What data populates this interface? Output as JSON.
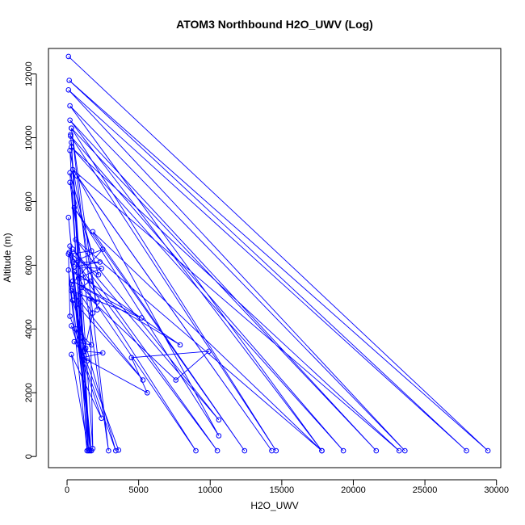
{
  "chart_data": {
    "type": "line",
    "title": "ATOM3 Northbound H2O_UWV (Log)",
    "xlabel": "H2O_UWV",
    "ylabel": "Altitude (m)",
    "xlim": [
      -1300,
      30300
    ],
    "ylim": [
      -350,
      12800
    ],
    "xticks": [
      0,
      5000,
      10000,
      15000,
      20000,
      25000,
      30000
    ],
    "yticks": [
      0,
      2000,
      4000,
      6000,
      8000,
      10000,
      12000
    ],
    "grid": false,
    "legend": "none",
    "marker": "open-circle",
    "series_color": "#0000ff",
    "series": [
      {
        "points": [
          {
            "x": 100,
            "y": 12550
          },
          {
            "x": 29400,
            "y": 180
          },
          {
            "x": 150,
            "y": 11800
          },
          {
            "x": 27900,
            "y": 180
          },
          {
            "x": 100,
            "y": 11500
          },
          {
            "x": 23600,
            "y": 180
          },
          {
            "x": 200,
            "y": 11000
          },
          {
            "x": 17800,
            "y": 180
          },
          {
            "x": 200,
            "y": 10550
          },
          {
            "x": 21600,
            "y": 180
          },
          {
            "x": 300,
            "y": 10300
          },
          {
            "x": 14600,
            "y": 180
          },
          {
            "x": 250,
            "y": 10050
          },
          {
            "x": 19300,
            "y": 180
          },
          {
            "x": 300,
            "y": 9700
          },
          {
            "x": 23200,
            "y": 180
          },
          {
            "x": 400,
            "y": 9000
          },
          {
            "x": 14300,
            "y": 180
          },
          {
            "x": 700,
            "y": 8800
          },
          {
            "x": 10600,
            "y": 650
          },
          {
            "x": 500,
            "y": 7800
          },
          {
            "x": 12400,
            "y": 180
          },
          {
            "x": 1800,
            "y": 7050
          },
          {
            "x": 17800,
            "y": 180
          },
          {
            "x": 600,
            "y": 6800
          },
          {
            "x": 10600,
            "y": 1150
          },
          {
            "x": 400,
            "y": 6500
          },
          {
            "x": 10500,
            "y": 180
          },
          {
            "x": 300,
            "y": 6300
          },
          {
            "x": 9000,
            "y": 180
          },
          {
            "x": 500,
            "y": 5800
          },
          {
            "x": 7900,
            "y": 3500
          },
          {
            "x": 400,
            "y": 5500
          },
          {
            "x": 5200,
            "y": 4350
          },
          {
            "x": 300,
            "y": 5200
          },
          {
            "x": 5300,
            "y": 2400
          },
          {
            "x": 400,
            "y": 4900
          },
          {
            "x": 3400,
            "y": 180
          },
          {
            "x": 300,
            "y": 4100
          },
          {
            "x": 2400,
            "y": 1200
          },
          {
            "x": 300,
            "y": 3200
          },
          {
            "x": 1500,
            "y": 180
          },
          {
            "x": 200,
            "y": 6600
          },
          {
            "x": 1600,
            "y": 180
          },
          {
            "x": 100,
            "y": 7500
          },
          {
            "x": 1700,
            "y": 180
          },
          {
            "x": 100,
            "y": 5850
          },
          {
            "x": 1400,
            "y": 180
          },
          {
            "x": 200,
            "y": 9600
          },
          {
            "x": 2100,
            "y": 4600
          },
          {
            "x": 300,
            "y": 10300
          },
          {
            "x": 2900,
            "y": 180
          },
          {
            "x": 200,
            "y": 8600
          },
          {
            "x": 2200,
            "y": 5700
          },
          {
            "x": 150,
            "y": 6400
          },
          {
            "x": 1300,
            "y": 3400
          },
          {
            "x": 600,
            "y": 4000
          },
          {
            "x": 1700,
            "y": 3500
          },
          {
            "x": 500,
            "y": 3600
          },
          {
            "x": 1400,
            "y": 3000
          },
          {
            "x": 300,
            "y": 5400
          },
          {
            "x": 2500,
            "y": 6500
          },
          {
            "x": 400,
            "y": 6100
          },
          {
            "x": 2300,
            "y": 6100
          },
          {
            "x": 500,
            "y": 5950
          },
          {
            "x": 2400,
            "y": 5900
          },
          {
            "x": 800,
            "y": 5600
          },
          {
            "x": 1600,
            "y": 5500
          },
          {
            "x": 1000,
            "y": 5300
          },
          {
            "x": 2100,
            "y": 4850
          },
          {
            "x": 900,
            "y": 5100
          },
          {
            "x": 1800,
            "y": 4500
          },
          {
            "x": 1200,
            "y": 3300
          },
          {
            "x": 2500,
            "y": 3250
          },
          {
            "x": 1100,
            "y": 3100
          },
          {
            "x": 5600,
            "y": 2000
          },
          {
            "x": 4500,
            "y": 3100
          },
          {
            "x": 9900,
            "y": 3300
          },
          {
            "x": 7600,
            "y": 2400
          },
          {
            "x": 1600,
            "y": 4950
          },
          {
            "x": 1800,
            "y": 250
          },
          {
            "x": 250,
            "y": 10100
          },
          {
            "x": 1500,
            "y": 220
          },
          {
            "x": 300,
            "y": 9850
          },
          {
            "x": 1600,
            "y": 200
          },
          {
            "x": 200,
            "y": 8900
          },
          {
            "x": 1700,
            "y": 6450
          },
          {
            "x": 100,
            "y": 6350
          },
          {
            "x": 200,
            "y": 4400
          },
          {
            "x": 3600,
            "y": 200
          }
        ]
      }
    ]
  }
}
